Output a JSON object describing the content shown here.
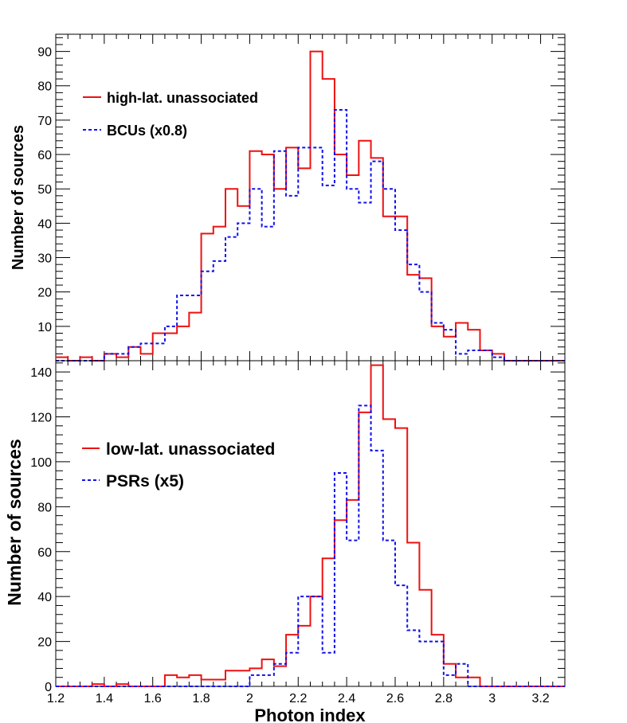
{
  "chart_data": [
    {
      "type": "histogram",
      "panel": "top",
      "xlim": [
        1.2,
        3.3
      ],
      "ylim": [
        0,
        95
      ],
      "bin_width": 0.05,
      "x_start": 1.2,
      "yticks": [
        10,
        20,
        30,
        40,
        50,
        60,
        70,
        80,
        90
      ],
      "ytick_labels": [
        "10",
        "20",
        "30",
        "40",
        "50",
        "60",
        "70",
        "80",
        "90"
      ],
      "ylabel": "Number of sources",
      "grid": false,
      "legend_position": "top-left",
      "series": [
        {
          "name": "high-lat. unassociated",
          "color": "#ee1111",
          "style": "solid",
          "values": [
            1,
            0,
            1,
            0,
            2,
            1,
            4,
            2,
            8,
            8,
            10,
            14,
            37,
            39,
            50,
            45,
            61,
            60,
            50,
            62,
            56,
            90,
            82,
            60,
            54,
            64,
            59,
            42,
            42,
            25,
            24,
            10,
            7,
            11,
            9,
            3,
            2,
            0,
            0,
            0,
            0,
            0
          ]
        },
        {
          "name": "BCUs (x0.8)",
          "color": "#1111ee",
          "style": "dashed",
          "values": [
            0,
            0,
            0,
            0,
            2,
            2,
            4,
            5,
            5,
            10,
            19,
            19,
            26,
            29,
            36,
            40,
            50,
            39,
            61,
            48,
            62,
            62,
            51,
            73,
            50,
            46,
            58,
            50,
            38,
            28,
            20,
            11,
            9,
            2,
            3,
            3,
            1,
            0,
            0,
            0,
            0,
            0
          ]
        }
      ]
    },
    {
      "type": "histogram",
      "panel": "bottom",
      "xlim": [
        1.2,
        3.3
      ],
      "ylim": [
        0,
        145
      ],
      "bin_width": 0.05,
      "x_start": 1.2,
      "xticks": [
        1.2,
        1.4,
        1.6,
        1.8,
        2,
        2.2,
        2.4,
        2.6,
        2.8,
        3,
        3.2
      ],
      "xtick_labels": [
        "1.2",
        "1.4",
        "1.6",
        "1.8",
        "2",
        "2.2",
        "2.4",
        "2.6",
        "2.8",
        "3",
        "3.2"
      ],
      "yticks": [
        0,
        20,
        40,
        60,
        80,
        100,
        120,
        140
      ],
      "ytick_labels": [
        "0",
        "20",
        "40",
        "60",
        "80",
        "100",
        "120",
        "140"
      ],
      "xlabel": "Photon index",
      "ylabel": "Number of sources",
      "grid": false,
      "legend_position": "center-left",
      "series": [
        {
          "name": "low-lat. unassociated",
          "color": "#ee1111",
          "style": "solid",
          "values": [
            0,
            0,
            0,
            1,
            0,
            1,
            0,
            0,
            0,
            5,
            4,
            5,
            3,
            3,
            7,
            7,
            8,
            12,
            9,
            23,
            27,
            40,
            57,
            74,
            83,
            122,
            143,
            119,
            115,
            64,
            43,
            23,
            10,
            4,
            4,
            0,
            0,
            0,
            0,
            0,
            0,
            0
          ]
        },
        {
          "name": "PSRs (x5)",
          "color": "#1111ee",
          "style": "dashed",
          "values": [
            0,
            0,
            0,
            0,
            0,
            0,
            0,
            0,
            0,
            0,
            0,
            0,
            0,
            0,
            0,
            0,
            5,
            5,
            10,
            15,
            40,
            40,
            15,
            95,
            65,
            125,
            105,
            65,
            45,
            25,
            20,
            20,
            5,
            10,
            0,
            0,
            0,
            0,
            0,
            0,
            0,
            0
          ]
        }
      ]
    }
  ]
}
